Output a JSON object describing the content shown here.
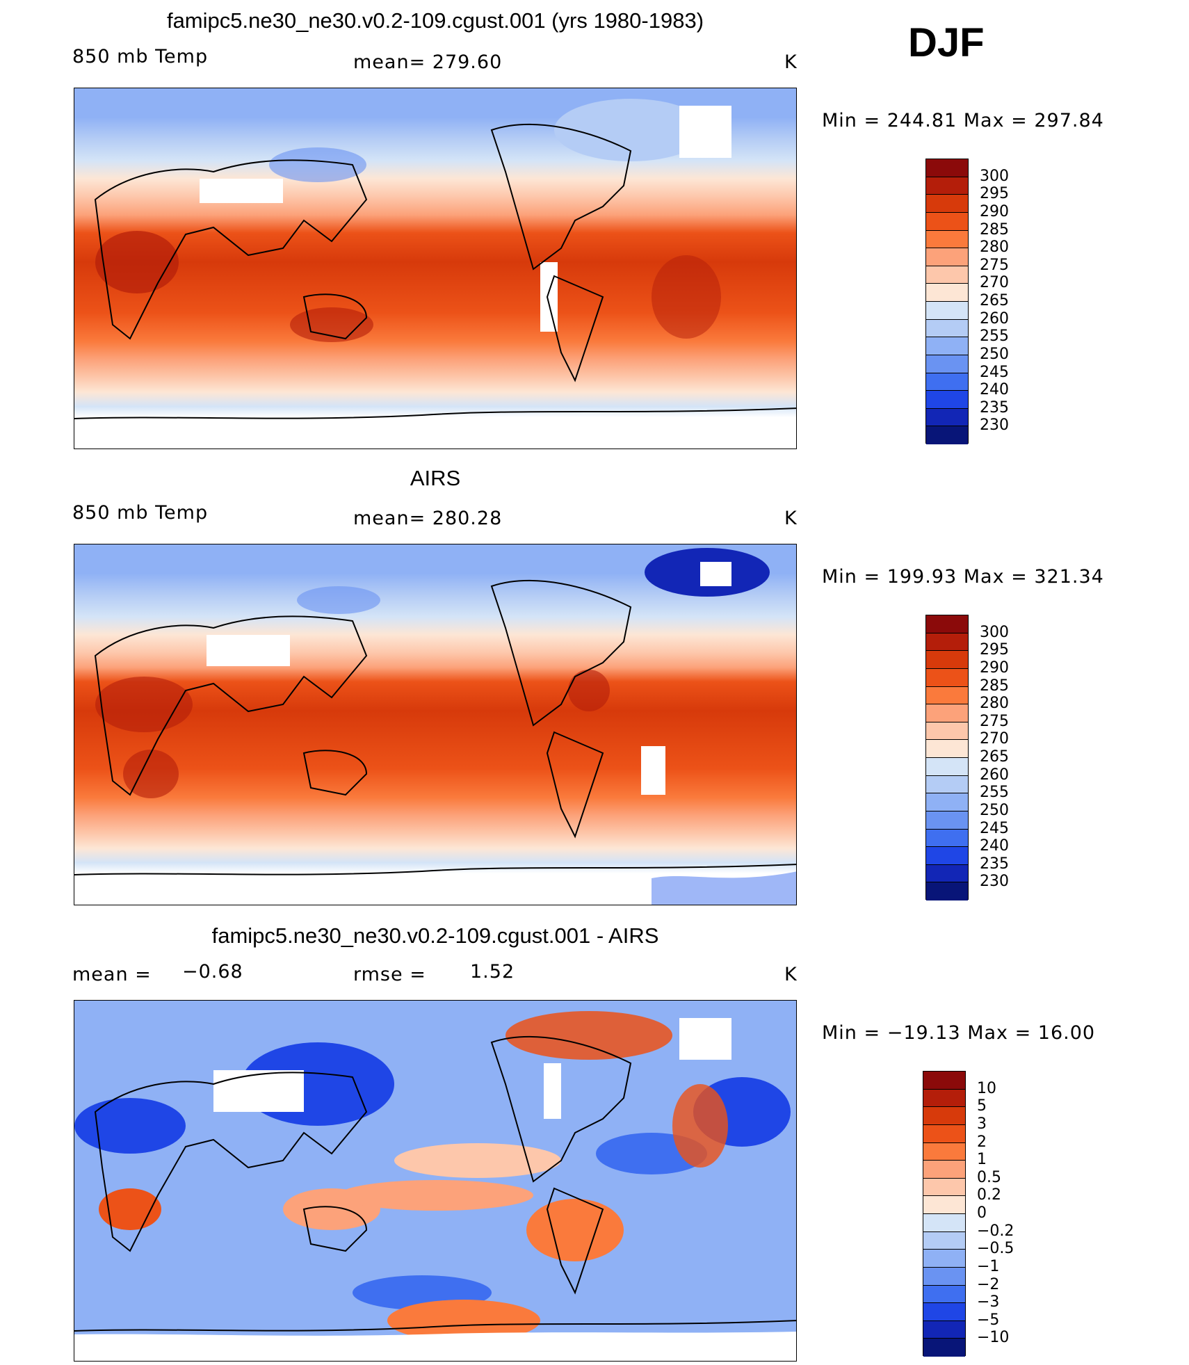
{
  "season": "DJF",
  "panels": [
    {
      "id": "model",
      "title": "famipc5.ne30_ne30.v0.2-109.cgust.001 (yrs 1980-1983)",
      "left_label": "850 mb Temp",
      "center_label": "mean= 279.60",
      "units": "K",
      "minmax": "Min = 244.81 Max = 297.84"
    },
    {
      "id": "obs",
      "title": "AIRS",
      "left_label": "850 mb Temp",
      "center_label": "mean= 280.28",
      "units": "K",
      "minmax": "Min = 199.93 Max = 321.34"
    },
    {
      "id": "diff",
      "title": "famipc5.ne30_ne30.v0.2-109.cgust.001 - AIRS",
      "left_label_a": "mean =",
      "left_value_a": "−0.68",
      "center_label_a": "rmse =",
      "center_value_a": "1.52",
      "units": "K",
      "minmax": "Min = −19.13 Max =  16.00"
    }
  ],
  "colorbar_temp": {
    "labels": [
      "300",
      "295",
      "290",
      "285",
      "280",
      "275",
      "270",
      "265",
      "260",
      "255",
      "250",
      "245",
      "240",
      "235",
      "230"
    ],
    "colors": [
      "#8b0a0a",
      "#b41e0a",
      "#d73a0b",
      "#ec5218",
      "#fa7a3c",
      "#fca27a",
      "#fdc7ab",
      "#fde6d5",
      "#d4e4f7",
      "#b4ccf5",
      "#8fb1f5",
      "#6a93f2",
      "#3f6ff0",
      "#1f46e6",
      "#1226b6",
      "#081578"
    ]
  },
  "colorbar_diff": {
    "labels": [
      "10",
      "5",
      "3",
      "2",
      "1",
      "0.5",
      "0.2",
      "0",
      "−0.2",
      "−0.5",
      "−1",
      "−2",
      "−3",
      "−5",
      "−10"
    ],
    "colors": [
      "#8b0a0a",
      "#b41e0a",
      "#d73a0b",
      "#ec5218",
      "#fa7a3c",
      "#fca27a",
      "#fdc7ab",
      "#fde6d5",
      "#d4e4f7",
      "#b4ccf5",
      "#8fb1f5",
      "#6a93f2",
      "#3f6ff0",
      "#1f46e6",
      "#1226b6",
      "#081578"
    ]
  }
}
